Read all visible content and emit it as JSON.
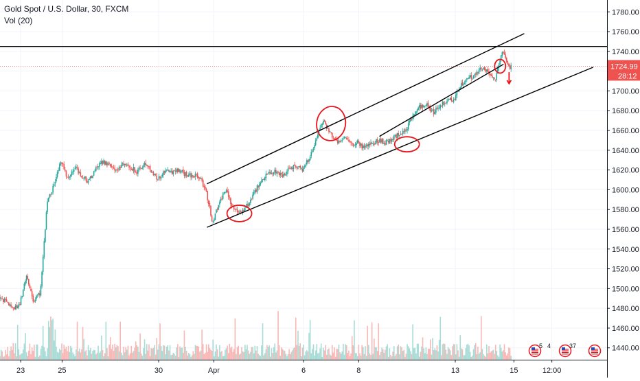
{
  "header": {
    "title": "Gold Spot / U.S. Dollar, 30, FXCM",
    "volume_label": "Vol (20)"
  },
  "price_badge": {
    "price": "1724.99",
    "countdown": "28:12"
  },
  "events": [
    {
      "flag": "us-flag-icon",
      "numbers": [
        "5",
        "4"
      ]
    },
    {
      "flag": "us-flag-icon",
      "numbers": [
        "37"
      ]
    },
    {
      "flag": "us-flag-icon",
      "numbers": []
    }
  ],
  "colors": {
    "up": "#26a69a",
    "down": "#ef5350",
    "vol_up": "#a9dcd6",
    "vol_down": "#f7b8b6",
    "trendline": "#000000",
    "annotation": "#e8141c",
    "price_line": "#ef5350",
    "grid": "#f0f3fa",
    "axis_text": "#131722"
  },
  "chart_data": {
    "type": "candlestick",
    "title": "Gold Spot / U.S. Dollar, 30, FXCM",
    "indicator": "Vol (20)",
    "y_axis": {
      "ylim": [
        1428,
        1792
      ],
      "ticks": [
        1440,
        1460,
        1480,
        1500,
        1520,
        1540,
        1560,
        1580,
        1600,
        1620,
        1640,
        1660,
        1680,
        1700,
        1720,
        1740,
        1760,
        1780
      ],
      "labels": [
        "1440.00",
        "1460.00",
        "1480.00",
        "1500.00",
        "1520.00",
        "1540.00",
        "1560.00",
        "1580.00",
        "1600.00",
        "1620.00",
        "1640.00",
        "1660.00",
        "1680.00",
        "1700.00",
        "1720.00",
        "1740.00",
        "1760.00",
        "1780.00"
      ]
    },
    "x_axis": {
      "labels": [
        "23",
        "25",
        "30",
        "Apr",
        "6",
        "8",
        "13",
        "15",
        "12:00"
      ],
      "positions": [
        3,
        9,
        23,
        31,
        44,
        52,
        66,
        74.5,
        80
      ]
    },
    "price_path": [
      [
        0,
        1492
      ],
      [
        1,
        1486
      ],
      [
        2,
        1480
      ],
      [
        3,
        1484
      ],
      [
        4,
        1514
      ],
      [
        5,
        1488
      ],
      [
        6,
        1496
      ],
      [
        7,
        1588
      ],
      [
        8,
        1604
      ],
      [
        9,
        1630
      ],
      [
        10,
        1610
      ],
      [
        11,
        1624
      ],
      [
        12,
        1614
      ],
      [
        13,
        1608
      ],
      [
        14,
        1620
      ],
      [
        15,
        1628
      ],
      [
        16,
        1625
      ],
      [
        17,
        1618
      ],
      [
        18,
        1626
      ],
      [
        19,
        1624
      ],
      [
        20,
        1618
      ],
      [
        21,
        1625
      ],
      [
        22,
        1620
      ],
      [
        23,
        1610
      ],
      [
        24,
        1619
      ],
      [
        25,
        1617
      ],
      [
        26,
        1620
      ],
      [
        27,
        1616
      ],
      [
        28,
        1614
      ],
      [
        29,
        1614
      ],
      [
        30,
        1600
      ],
      [
        31,
        1566
      ],
      [
        32,
        1590
      ],
      [
        33,
        1598
      ],
      [
        34,
        1580
      ],
      [
        35,
        1576
      ],
      [
        36,
        1584
      ],
      [
        37,
        1596
      ],
      [
        38,
        1610
      ],
      [
        39,
        1616
      ],
      [
        40,
        1618
      ],
      [
        41,
        1614
      ],
      [
        42,
        1620
      ],
      [
        43,
        1624
      ],
      [
        44,
        1620
      ],
      [
        45,
        1632
      ],
      [
        46,
        1650
      ],
      [
        47,
        1670
      ],
      [
        48,
        1658
      ],
      [
        49,
        1648
      ],
      [
        50,
        1654
      ],
      [
        51,
        1646
      ],
      [
        52,
        1648
      ],
      [
        53,
        1642
      ],
      [
        54,
        1646
      ],
      [
        55,
        1650
      ],
      [
        56,
        1648
      ],
      [
        57,
        1652
      ],
      [
        58,
        1656
      ],
      [
        59,
        1660
      ],
      [
        60,
        1676
      ],
      [
        61,
        1684
      ],
      [
        62,
        1686
      ],
      [
        63,
        1678
      ],
      [
        64,
        1686
      ],
      [
        65,
        1690
      ],
      [
        66,
        1692
      ],
      [
        67,
        1706
      ],
      [
        68,
        1712
      ],
      [
        69,
        1716
      ],
      [
        70,
        1724
      ],
      [
        71,
        1718
      ],
      [
        72,
        1712
      ],
      [
        73,
        1740
      ],
      [
        74,
        1724
      ]
    ],
    "annotations": {
      "horizontal_line": 1745,
      "current_price": 1724.99,
      "trendlines": [
        [
          [
            30,
            1606
          ],
          [
            76,
            1758
          ]
        ],
        [
          [
            30,
            1562
          ],
          [
            86,
            1724
          ]
        ],
        [
          [
            55,
            1654
          ],
          [
            73,
            1727
          ]
        ]
      ],
      "circles": [
        {
          "x": 48,
          "y": 1667
        },
        {
          "x": 59,
          "y": 1646
        },
        {
          "x": 34.7,
          "y": 1576
        },
        {
          "x": 72.5,
          "y": 1725
        }
      ],
      "arrow": {
        "x": 73.8,
        "from": 1719,
        "to": 1708
      }
    }
  }
}
